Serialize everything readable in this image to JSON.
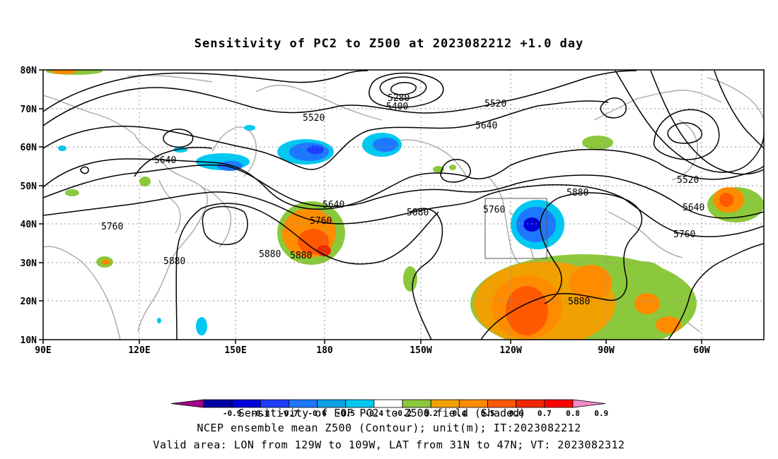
{
  "title": "Sensitivity of PC2 to Z500 at 2023082212 +1.0 day",
  "lat_labels": [
    "80N",
    "70N",
    "60N",
    "50N",
    "40N",
    "30N",
    "20N",
    "10N"
  ],
  "lon_labels": [
    "90E",
    "120E",
    "150E",
    "180",
    "150W",
    "120W",
    "90W",
    "60W"
  ],
  "contour_labels": [
    "5280",
    "5400",
    "5520",
    "5520",
    "5640",
    "5640",
    "5640",
    "5640",
    "5520",
    "5760",
    "5760",
    "5760",
    "5760",
    "5880",
    "5880",
    "5880",
    "5880",
    "5880",
    "5880"
  ],
  "colorbar_labels": [
    "-0.9",
    "-0.8",
    "-0.7",
    "-0.6",
    "-0.5",
    "-0.4",
    "-0.2",
    "0.2",
    "0.4",
    "0.5",
    "0.6",
    "0.7",
    "0.8",
    "0.9"
  ],
  "colorbar_colors": [
    "#a0008c",
    "#0000a0",
    "#0000d8",
    "#1c3cff",
    "#1e78ff",
    "#0ca0e6",
    "#00c8f0",
    "#ffffff",
    "#8cc83c",
    "#f0a000",
    "#ff8c00",
    "#ff5a00",
    "#f02800",
    "#ff0000",
    "#f08cc8"
  ],
  "colorbar_title": "Sensitivity of EOF PC2 to Z500 field (Shaded)",
  "footer_line1": "NCEP ensemble mean Z500 (Contour); unit(m); IT:2023082212",
  "footer_line2": "Valid area: LON from 129W to 109W, LAT from 31N to 47N; VT: 2023082312",
  "valid_area_box": {
    "lon_west": -129,
    "lon_east": -109,
    "lat_south": 31,
    "lat_north": 47
  }
}
